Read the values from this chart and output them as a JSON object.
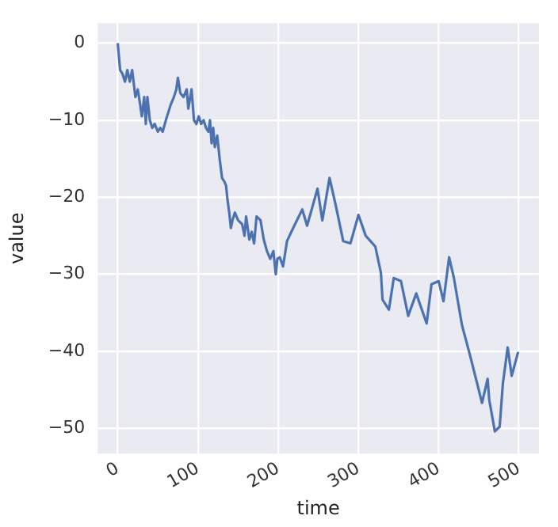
{
  "chart_data": {
    "type": "line",
    "xlabel": "time",
    "ylabel": "value",
    "grid": true,
    "legend": false,
    "xlim": [
      -25,
      525
    ],
    "ylim": [
      -53.3,
      2.6
    ],
    "xticks": [
      0,
      100,
      200,
      300,
      400,
      500
    ],
    "yticks": [
      -50,
      -40,
      -30,
      -20,
      -10,
      0
    ],
    "series": [
      {
        "color": "#4c72b0",
        "x": [
          0,
          3,
          6,
          9,
          12,
          15,
          18,
          22,
          25,
          28,
          30,
          33,
          35,
          37,
          40,
          43,
          46,
          50,
          53,
          56,
          60,
          63,
          66,
          70,
          73,
          75,
          78,
          82,
          86,
          88,
          92,
          95,
          98,
          101,
          104,
          107,
          110,
          113,
          115,
          117,
          119,
          121,
          124,
          127,
          130,
          133,
          135,
          137,
          139,
          141,
          143,
          146,
          150,
          155,
          158,
          160,
          164,
          167,
          170,
          173,
          178,
          182,
          186,
          190,
          194,
          197,
          199,
          202,
          206,
          211,
          220,
          230,
          236,
          249,
          255,
          264,
          272,
          281,
          290,
          300,
          309,
          321,
          328,
          330,
          338,
          344,
          353,
          362,
          372,
          385,
          391,
          400,
          406,
          413,
          419,
          429,
          438,
          448,
          454,
          461,
          463,
          470,
          476,
          480,
          486,
          491,
          499
        ],
        "values": [
          0,
          -3.5,
          -4,
          -5,
          -3.5,
          -5,
          -3.5,
          -7,
          -6,
          -8,
          -9.5,
          -7,
          -10.5,
          -7,
          -10,
          -11,
          -10.5,
          -11.5,
          -11,
          -11.5,
          -10,
          -9,
          -8,
          -7,
          -6,
          -4.5,
          -6.5,
          -7,
          -6,
          -8.5,
          -6,
          -10,
          -10.5,
          -9.5,
          -10.5,
          -10,
          -11,
          -11.5,
          -10,
          -13,
          -11,
          -13.5,
          -12,
          -15,
          -17.5,
          -18,
          -18.5,
          -20.5,
          -22,
          -24,
          -23,
          -22,
          -23,
          -23.5,
          -25,
          -22.5,
          -25.5,
          -24.5,
          -26,
          -22.5,
          -23,
          -25.5,
          -27,
          -28,
          -27,
          -30,
          -28,
          -27.8,
          -29,
          -25.7,
          -23.7,
          -21.6,
          -23.7,
          -18.9,
          -23,
          -17.5,
          -21.2,
          -25.7,
          -26,
          -22.3,
          -25,
          -26.4,
          -29.8,
          -33.3,
          -34.6,
          -30.5,
          -30.9,
          -35.4,
          -32.5,
          -36.4,
          -31.3,
          -30.9,
          -33.5,
          -27.8,
          -30.5,
          -36.6,
          -40.1,
          -44.2,
          -46.7,
          -43.6,
          -46.3,
          -50.4,
          -49.8,
          -44.2,
          -39.5,
          -43.2,
          -40.1
        ]
      }
    ]
  }
}
